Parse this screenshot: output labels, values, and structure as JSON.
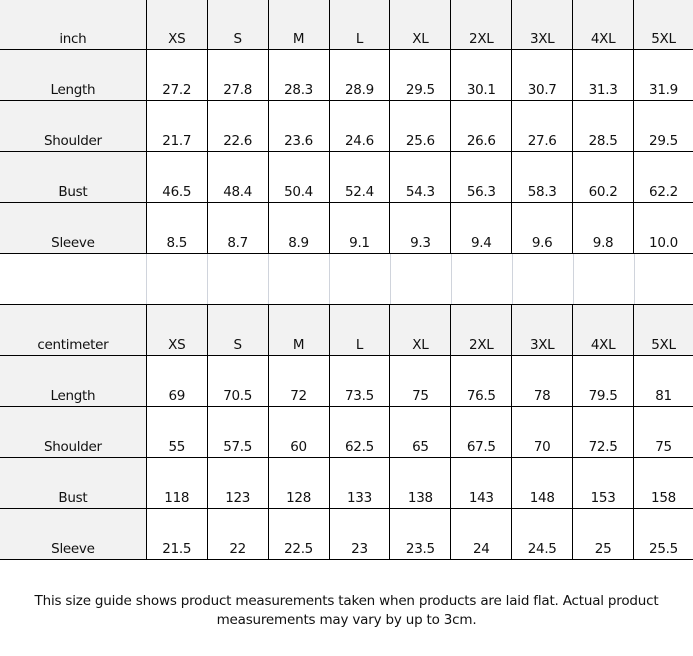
{
  "tables": [
    {
      "unit": "inch",
      "sizes": [
        "XS",
        "S",
        "M",
        "L",
        "XL",
        "2XL",
        "3XL",
        "4XL",
        "5XL"
      ],
      "rows": [
        {
          "label": "Length",
          "values": [
            "27.2",
            "27.8",
            "28.3",
            "28.9",
            "29.5",
            "30.1",
            "30.7",
            "31.3",
            "31.9"
          ]
        },
        {
          "label": "Shoulder",
          "values": [
            "21.7",
            "22.6",
            "23.6",
            "24.6",
            "25.6",
            "26.6",
            "27.6",
            "28.5",
            "29.5"
          ]
        },
        {
          "label": "Bust",
          "values": [
            "46.5",
            "48.4",
            "50.4",
            "52.4",
            "54.3",
            "56.3",
            "58.3",
            "60.2",
            "62.2"
          ]
        },
        {
          "label": "Sleeve",
          "values": [
            "8.5",
            "8.7",
            "8.9",
            "9.1",
            "9.3",
            "9.4",
            "9.6",
            "9.8",
            "10.0"
          ]
        }
      ]
    },
    {
      "unit": "centimeter",
      "sizes": [
        "XS",
        "S",
        "M",
        "L",
        "XL",
        "2XL",
        "3XL",
        "4XL",
        "5XL"
      ],
      "rows": [
        {
          "label": "Length",
          "values": [
            "69",
            "70.5",
            "72",
            "73.5",
            "75",
            "76.5",
            "78",
            "79.5",
            "81"
          ]
        },
        {
          "label": "Shoulder",
          "values": [
            "55",
            "57.5",
            "60",
            "62.5",
            "65",
            "67.5",
            "70",
            "72.5",
            "75"
          ]
        },
        {
          "label": "Bust",
          "values": [
            "118",
            "123",
            "128",
            "133",
            "138",
            "143",
            "148",
            "153",
            "158"
          ]
        },
        {
          "label": "Sleeve",
          "values": [
            "21.5",
            "22",
            "22.5",
            "23",
            "23.5",
            "24",
            "24.5",
            "25",
            "25.5"
          ]
        }
      ]
    }
  ],
  "note": "This size guide shows product measurements taken when products are laid flat. Actual product measurements may vary by up to 3cm.",
  "colors": {
    "header_bg": "#f2f2f2",
    "border": "#000000",
    "spacer_grid": "#d0d4dc"
  }
}
